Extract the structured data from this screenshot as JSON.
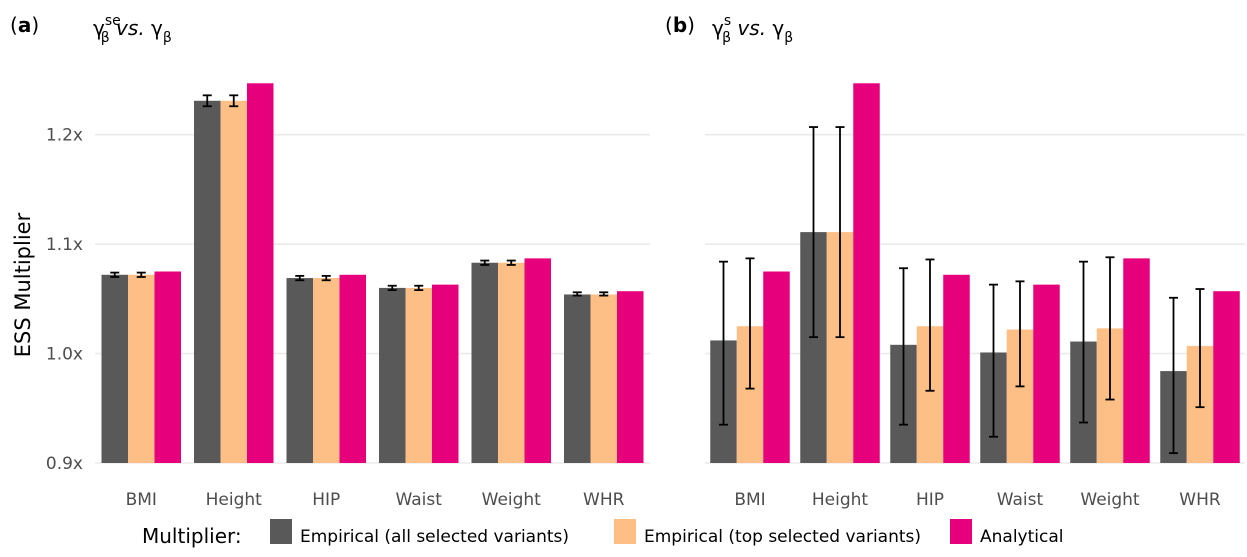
{
  "chart_data": {
    "type": "bar",
    "ylabel": "ESS Multiplier",
    "ylim": [
      0.9,
      1.25
    ],
    "yticks": [
      0.9,
      1.0,
      1.1,
      1.2
    ],
    "ytick_labels": [
      "0.9x",
      "1.0x",
      "1.1x",
      "1.2x"
    ],
    "grid": true,
    "legend_position": "bottom",
    "legend_title": "Multiplier:",
    "series_meta": [
      {
        "name": "Empirical (all selected variants)",
        "color": "#595959"
      },
      {
        "name": "Empirical (top selected variants)",
        "color": "#fdbf85"
      },
      {
        "name": "Analytical",
        "color": "#e7007c"
      }
    ],
    "panels": [
      {
        "tag": "(a)",
        "title_main": "γ",
        "title_sub": "β",
        "title_sup": "se",
        "title_vs": "vs.",
        "title_rhs": "γ",
        "title_rhs_sub": "β",
        "categories": [
          "BMI",
          "Height",
          "HIP",
          "Waist",
          "Weight",
          "WHR"
        ],
        "series": [
          {
            "name": "Empirical (all selected variants)",
            "values": [
              1.072,
              1.231,
              1.069,
              1.06,
              1.083,
              1.054
            ],
            "err_low": [
              1.07,
              1.226,
              1.067,
              1.058,
              1.081,
              1.053
            ],
            "err_high": [
              1.074,
              1.236,
              1.071,
              1.062,
              1.085,
              1.056
            ]
          },
          {
            "name": "Empirical (top selected variants)",
            "values": [
              1.072,
              1.231,
              1.069,
              1.06,
              1.083,
              1.054
            ],
            "err_low": [
              1.07,
              1.226,
              1.067,
              1.058,
              1.081,
              1.053
            ],
            "err_high": [
              1.074,
              1.236,
              1.071,
              1.062,
              1.085,
              1.056
            ]
          },
          {
            "name": "Analytical",
            "values": [
              1.075,
              1.247,
              1.072,
              1.063,
              1.087,
              1.057
            ]
          }
        ]
      },
      {
        "tag": "(b)",
        "title_main": "γ",
        "title_sub": "β",
        "title_sup": "s",
        "title_vs": "vs.",
        "title_rhs": "γ",
        "title_rhs_sub": "β",
        "categories": [
          "BMI",
          "Height",
          "HIP",
          "Waist",
          "Weight",
          "WHR"
        ],
        "series": [
          {
            "name": "Empirical (all selected variants)",
            "values": [
              1.012,
              1.111,
              1.008,
              1.001,
              1.011,
              0.984
            ],
            "err_low": [
              0.935,
              1.015,
              0.935,
              0.924,
              0.937,
              0.909
            ],
            "err_high": [
              1.084,
              1.207,
              1.078,
              1.063,
              1.084,
              1.051
            ]
          },
          {
            "name": "Empirical (top selected variants)",
            "values": [
              1.025,
              1.111,
              1.025,
              1.022,
              1.023,
              1.007
            ],
            "err_low": [
              0.968,
              1.015,
              0.966,
              0.97,
              0.958,
              0.951
            ],
            "err_high": [
              1.087,
              1.207,
              1.086,
              1.066,
              1.088,
              1.059
            ]
          },
          {
            "name": "Analytical",
            "values": [
              1.075,
              1.247,
              1.072,
              1.063,
              1.087,
              1.057
            ]
          }
        ]
      }
    ]
  }
}
